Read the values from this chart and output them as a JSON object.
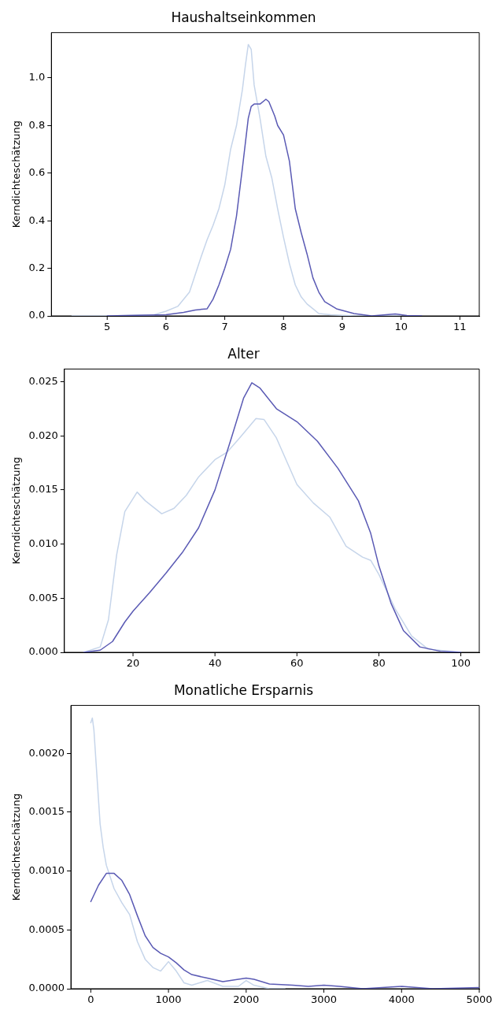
{
  "chart_data": [
    {
      "type": "line",
      "title": "Haushaltseinkommen",
      "ylabel": "Kerndichteschätzung",
      "xlim": [
        4.05,
        11.33
      ],
      "xticks": [
        5,
        6,
        7,
        8,
        9,
        10,
        11
      ],
      "ylim": [
        0,
        1.19
      ],
      "yticks": [
        {
          "value": 0,
          "label": "0.0"
        },
        {
          "value": 0.2,
          "label": "0.2"
        },
        {
          "value": 0.4,
          "label": "0.4"
        },
        {
          "value": 0.6,
          "label": "0.6"
        },
        {
          "value": 0.8,
          "label": "0.8"
        },
        {
          "value": 1,
          "label": "1.0"
        }
      ],
      "grid": false,
      "legend": false,
      "marker": "none",
      "line_style": "solid",
      "series": [
        {
          "color": "#c6d5ea",
          "x": [
            4.4,
            5,
            5.8,
            6,
            6.2,
            6.4,
            6.6,
            6.7,
            6.8,
            6.9,
            7,
            7.1,
            7.2,
            7.3,
            7.35,
            7.4,
            7.45,
            7.5,
            7.6,
            7.7,
            7.8,
            7.9,
            8,
            8.1,
            8.2,
            8.3,
            8.4,
            8.5,
            8.6,
            8.8,
            9.2,
            10
          ],
          "values": [
            0,
            0,
            0.005,
            0.02,
            0.04,
            0.1,
            0.25,
            0.32,
            0.38,
            0.45,
            0.55,
            0.7,
            0.8,
            0.95,
            1.05,
            1.14,
            1.12,
            0.97,
            0.83,
            0.67,
            0.58,
            0.45,
            0.33,
            0.22,
            0.13,
            0.08,
            0.05,
            0.03,
            0.01,
            0.005,
            0,
            0
          ]
        },
        {
          "color": "#5a5ab4",
          "x": [
            5,
            6,
            6.3,
            6.5,
            6.7,
            6.8,
            6.9,
            7,
            7.1,
            7.2,
            7.3,
            7.4,
            7.45,
            7.5,
            7.6,
            7.7,
            7.75,
            7.85,
            7.9,
            8,
            8.1,
            8.2,
            8.3,
            8.4,
            8.5,
            8.6,
            8.7,
            8.9,
            9.2,
            9.5,
            9.9,
            10.1,
            10.35
          ],
          "values": [
            0,
            0.005,
            0.015,
            0.025,
            0.03,
            0.07,
            0.13,
            0.2,
            0.28,
            0.42,
            0.62,
            0.83,
            0.88,
            0.89,
            0.89,
            0.91,
            0.9,
            0.84,
            0.8,
            0.76,
            0.65,
            0.45,
            0.35,
            0.26,
            0.16,
            0.1,
            0.06,
            0.03,
            0.01,
            0,
            0.008,
            0.002,
            0
          ]
        }
      ]
    },
    {
      "type": "line",
      "title": "Alter",
      "ylabel": "Kerndichteschätzung",
      "xlim": [
        3.25,
        104.5
      ],
      "xticks": [
        20,
        40,
        60,
        80,
        100
      ],
      "ylim": [
        0,
        0.02617
      ],
      "yticks": [
        {
          "value": 0,
          "label": "0.000"
        },
        {
          "value": 0.005,
          "label": "0.005"
        },
        {
          "value": 0.01,
          "label": "0.010"
        },
        {
          "value": 0.015,
          "label": "0.015"
        },
        {
          "value": 0.02,
          "label": "0.020"
        },
        {
          "value": 0.025,
          "label": "0.025"
        }
      ],
      "grid": false,
      "legend": false,
      "marker": "none",
      "line_style": "solid",
      "series": [
        {
          "color": "#c6d5ea",
          "x": [
            8,
            12,
            14,
            16,
            18,
            21,
            23,
            27,
            30,
            33,
            36,
            40,
            43,
            46,
            50,
            52,
            55,
            60,
            64,
            68,
            72,
            76,
            78,
            80,
            84,
            88,
            92,
            100
          ],
          "values": [
            0,
            0.0005,
            0.003,
            0.009,
            0.013,
            0.0148,
            0.014,
            0.0128,
            0.0133,
            0.0145,
            0.0162,
            0.0178,
            0.0185,
            0.0198,
            0.0216,
            0.0215,
            0.0198,
            0.0155,
            0.0138,
            0.0125,
            0.0098,
            0.0088,
            0.0085,
            0.0072,
            0.004,
            0.0015,
            0.0003,
            0
          ]
        },
        {
          "color": "#5a5ab4",
          "x": [
            8,
            12,
            15,
            18,
            20,
            24,
            28,
            32,
            36,
            40,
            44,
            47,
            49,
            51,
            55,
            60,
            65,
            70,
            75,
            78,
            80,
            83,
            86,
            90,
            95,
            100
          ],
          "values": [
            0,
            0.0002,
            0.001,
            0.0028,
            0.0038,
            0.0055,
            0.0073,
            0.0092,
            0.0115,
            0.015,
            0.0198,
            0.0235,
            0.0249,
            0.0244,
            0.0225,
            0.0213,
            0.0195,
            0.017,
            0.014,
            0.011,
            0.008,
            0.0045,
            0.002,
            0.0005,
            0.0001,
            0
          ]
        }
      ]
    },
    {
      "type": "line",
      "title": "Monatliche Ersparnis",
      "ylabel": "Kerndichteschätzung",
      "xlim": [
        -256,
        5000
      ],
      "xticks": [
        0,
        1000,
        2000,
        3000,
        4000,
        5000
      ],
      "ylim": [
        0,
        0.002407
      ],
      "yticks": [
        {
          "value": 0,
          "label": "0.0000"
        },
        {
          "value": 0.0005,
          "label": "0.0005"
        },
        {
          "value": 0.001,
          "label": "0.0010"
        },
        {
          "value": 0.0015,
          "label": "0.0015"
        },
        {
          "value": 0.002,
          "label": "0.0020"
        }
      ],
      "grid": false,
      "legend": false,
      "marker": "none",
      "line_style": "solid",
      "series": [
        {
          "color": "#c6d5ea",
          "x": [
            0,
            20,
            40,
            80,
            120,
            160,
            200,
            300,
            400,
            500,
            600,
            700,
            800,
            900,
            1000,
            1100,
            1200,
            1300,
            1500,
            1700,
            1900,
            2000,
            2100,
            2300,
            2500
          ],
          "values": [
            0.00226,
            0.0023,
            0.0022,
            0.0018,
            0.0014,
            0.0012,
            0.00105,
            0.00085,
            0.00073,
            0.00063,
            0.0004,
            0.00025,
            0.00018,
            0.00015,
            0.00023,
            0.00015,
            5e-05,
            3e-05,
            7e-05,
            2e-05,
            2e-05,
            7e-05,
            3e-05,
            0,
            0
          ]
        },
        {
          "color": "#5a5ab4",
          "x": [
            0,
            100,
            200,
            300,
            400,
            500,
            600,
            700,
            800,
            900,
            1000,
            1100,
            1200,
            1300,
            1500,
            1700,
            1800,
            2000,
            2100,
            2300,
            2600,
            2800,
            3000,
            3200,
            3500,
            4000,
            4400,
            5000
          ],
          "values": [
            0.00074,
            0.00088,
            0.00098,
            0.00098,
            0.00092,
            0.0008,
            0.00062,
            0.00045,
            0.00035,
            0.0003,
            0.00027,
            0.00022,
            0.00016,
            0.00012,
            9e-05,
            6e-05,
            7e-05,
            9e-05,
            8e-05,
            4e-05,
            3e-05,
            2e-05,
            3e-05,
            2e-05,
            0,
            2e-05,
            0,
            1e-05
          ]
        }
      ]
    }
  ]
}
